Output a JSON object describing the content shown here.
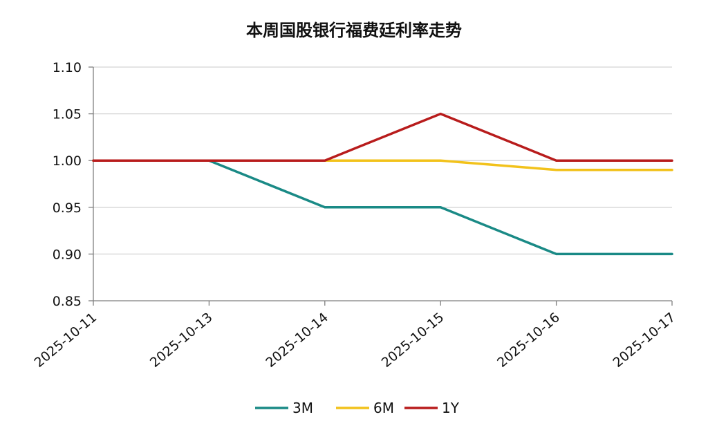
{
  "chart_data": {
    "type": "line",
    "title": "本周国股银行福费廷利率走势",
    "categories": [
      "2025-10-11",
      "2025-10-13",
      "2025-10-14",
      "2025-10-15",
      "2025-10-16",
      "2025-10-17"
    ],
    "series": [
      {
        "name": "3M",
        "values": [
          1.0,
          1.0,
          0.95,
          0.95,
          0.9,
          0.9
        ],
        "color": "#1a8a86"
      },
      {
        "name": "6M",
        "values": [
          1.0,
          1.0,
          1.0,
          1.0,
          0.99,
          0.99
        ],
        "color": "#f2c21b"
      },
      {
        "name": "1Y",
        "values": [
          1.0,
          1.0,
          1.0,
          1.05,
          1.0,
          1.0
        ],
        "color": "#b81c1c"
      }
    ],
    "yticks": [
      "0.85",
      "0.90",
      "0.95",
      "1.00",
      "1.05",
      "1.10"
    ],
    "ylim": [
      0.85,
      1.1
    ],
    "grid": true,
    "legend_position": "bottom"
  }
}
